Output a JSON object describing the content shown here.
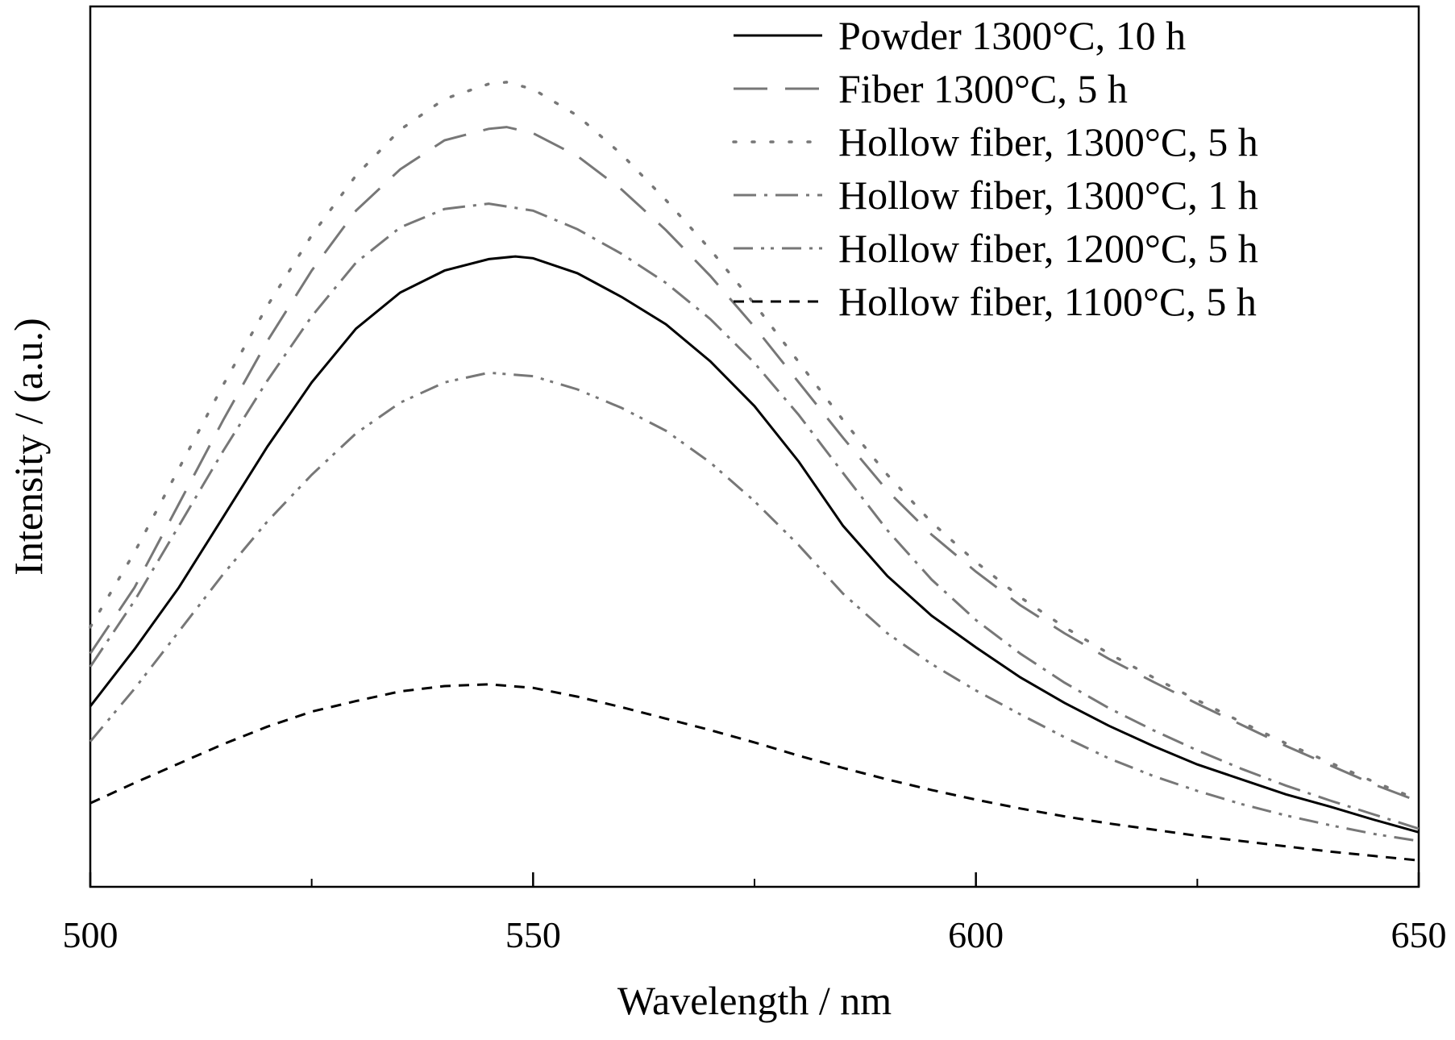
{
  "chart_data": {
    "type": "line",
    "title": "",
    "xlabel": "Wavelength / nm",
    "ylabel": "Intensity / (a.u.)",
    "xlim": [
      500,
      650
    ],
    "ylim": [
      0,
      100
    ],
    "xticks": [
      500,
      550,
      600,
      650
    ],
    "xtick_labels": [
      "500",
      "550",
      "600",
      "650"
    ],
    "x_minor_ticks": [
      525,
      575,
      625
    ],
    "grid": false,
    "legend_position": "top-right",
    "series": [
      {
        "name": "Powder 1300°C, 10 h",
        "style": "solid",
        "color": "#000000",
        "x": [
          500,
          505,
          510,
          515,
          520,
          525,
          530,
          535,
          540,
          545,
          548,
          550,
          555,
          560,
          565,
          570,
          575,
          580,
          585,
          590,
          595,
          600,
          605,
          610,
          615,
          620,
          625,
          630,
          635,
          640,
          645,
          650
        ],
        "y": [
          20.5,
          27.0,
          34.0,
          42.0,
          50.0,
          57.3,
          63.4,
          67.5,
          70.0,
          71.3,
          71.6,
          71.4,
          69.7,
          67.0,
          63.9,
          59.7,
          54.6,
          48.3,
          41.0,
          35.3,
          30.8,
          27.2,
          23.8,
          20.9,
          18.3,
          16.0,
          13.9,
          12.2,
          10.5,
          9.1,
          7.6,
          6.2
        ]
      },
      {
        "name": "Fiber 1300°C, 5 h",
        "style": "longdash",
        "color": "#777777",
        "x": [
          500,
          505,
          510,
          515,
          520,
          525,
          530,
          535,
          540,
          545,
          547,
          550,
          555,
          560,
          565,
          570,
          575,
          580,
          585,
          590,
          595,
          600,
          605,
          610,
          615,
          620,
          625,
          630,
          635,
          640,
          645,
          650
        ],
        "y": [
          26.5,
          34.0,
          43.5,
          53.0,
          62.0,
          70.0,
          76.8,
          81.5,
          84.8,
          86.1,
          86.3,
          85.6,
          83.0,
          79.2,
          74.6,
          69.4,
          63.6,
          57.3,
          51.0,
          45.0,
          40.0,
          35.8,
          32.0,
          28.8,
          25.9,
          23.3,
          20.8,
          18.4,
          16.0,
          13.8,
          11.6,
          9.7
        ]
      },
      {
        "name": "Hollow fiber, 1300°C, 5 h",
        "style": "dotted",
        "color": "#777777",
        "x": [
          500,
          505,
          510,
          515,
          520,
          525,
          530,
          535,
          540,
          545,
          547,
          550,
          555,
          560,
          565,
          570,
          575,
          580,
          585,
          590,
          595,
          600,
          605,
          610,
          615,
          620,
          625,
          630,
          635,
          640,
          645,
          650
        ],
        "y": [
          29.5,
          38.0,
          47.5,
          57.0,
          66.0,
          74.0,
          80.8,
          86.0,
          89.5,
          91.2,
          91.4,
          90.6,
          87.6,
          83.2,
          78.0,
          72.4,
          66.2,
          59.6,
          53.0,
          46.8,
          41.4,
          36.9,
          32.9,
          29.5,
          26.5,
          23.8,
          21.2,
          18.7,
          16.3,
          14.1,
          11.9,
          9.9
        ]
      },
      {
        "name": "Hollow fiber, 1300°C, 1 h",
        "style": "dashdot",
        "color": "#777777",
        "x": [
          500,
          505,
          510,
          515,
          520,
          525,
          530,
          535,
          540,
          545,
          550,
          555,
          560,
          565,
          570,
          575,
          580,
          585,
          590,
          595,
          600,
          605,
          610,
          615,
          620,
          625,
          630,
          635,
          640,
          645,
          650
        ],
        "y": [
          25.0,
          32.5,
          41.0,
          49.5,
          57.5,
          64.8,
          70.9,
          74.9,
          77.0,
          77.6,
          76.8,
          74.7,
          71.9,
          68.6,
          64.5,
          59.5,
          53.6,
          47.0,
          40.5,
          34.9,
          30.3,
          26.5,
          23.2,
          20.3,
          17.8,
          15.5,
          13.4,
          11.5,
          9.8,
          8.2,
          6.6
        ]
      },
      {
        "name": "Hollow fiber, 1200°C, 5 h",
        "style": "dashdotdot",
        "color": "#777777",
        "x": [
          500,
          505,
          510,
          515,
          520,
          525,
          530,
          535,
          540,
          545,
          550,
          555,
          560,
          565,
          570,
          575,
          580,
          585,
          590,
          595,
          600,
          605,
          610,
          615,
          620,
          625,
          630,
          635,
          640,
          645,
          650
        ],
        "y": [
          16.5,
          22.5,
          29.0,
          35.5,
          41.5,
          46.8,
          51.5,
          55.0,
          57.3,
          58.4,
          58.0,
          56.5,
          54.4,
          51.8,
          48.2,
          43.8,
          38.8,
          33.3,
          28.8,
          25.3,
          22.3,
          19.6,
          17.0,
          14.6,
          12.6,
          10.9,
          9.4,
          8.1,
          7.0,
          6.0,
          5.2
        ]
      },
      {
        "name": "Hollow fiber, 1100°C, 5 h",
        "style": "shortdash",
        "color": "#000000",
        "x": [
          500,
          505,
          510,
          515,
          520,
          525,
          530,
          535,
          540,
          545,
          550,
          555,
          560,
          565,
          570,
          575,
          580,
          585,
          590,
          595,
          600,
          605,
          610,
          615,
          620,
          625,
          630,
          635,
          640,
          645,
          650
        ],
        "y": [
          9.5,
          11.8,
          14.0,
          16.2,
          18.2,
          19.9,
          21.1,
          22.2,
          22.8,
          23.0,
          22.6,
          21.6,
          20.4,
          19.1,
          17.8,
          16.4,
          14.9,
          13.5,
          12.2,
          11.0,
          9.9,
          8.9,
          8.0,
          7.2,
          6.5,
          5.8,
          5.2,
          4.6,
          4.0,
          3.5,
          3.0
        ]
      }
    ]
  }
}
